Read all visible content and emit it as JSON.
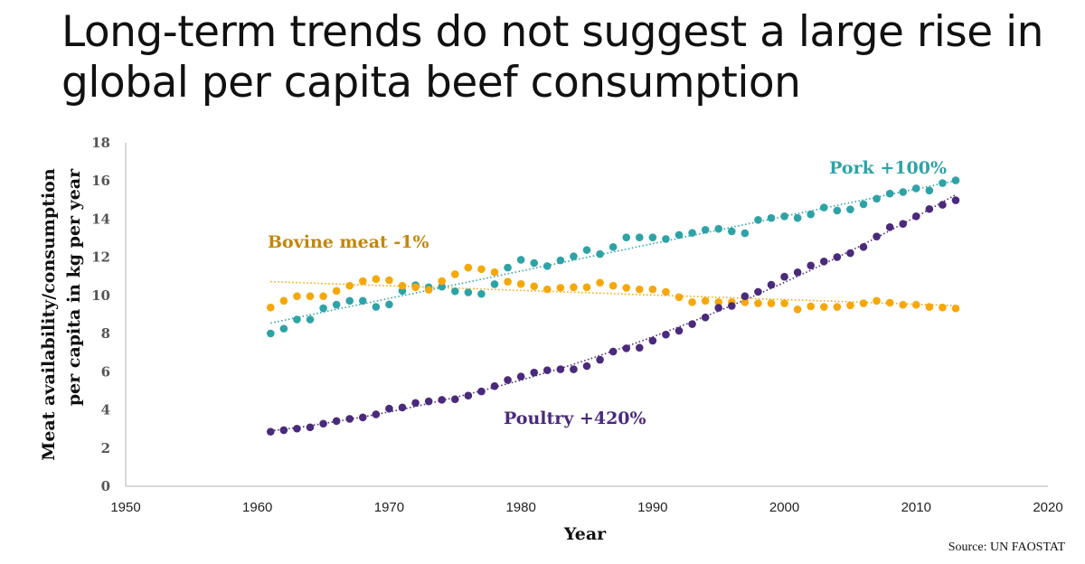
{
  "title": "Long-term trends do not suggest a large rise in global per capita beef consumption",
  "source": "Source: UN FAOSTAT",
  "chart_data": {
    "type": "scatter",
    "title": "Long-term trends do not suggest a large rise in global per capita beef consumption",
    "xlabel": "Year",
    "ylabel_line1": "Meat availability/consumption",
    "ylabel_line2": "per capita in kg per year",
    "xlim": [
      1950,
      2020
    ],
    "ylim": [
      0,
      18
    ],
    "xticks": [
      1950,
      1960,
      1970,
      1980,
      1990,
      2000,
      2010,
      2020
    ],
    "yticks": [
      0,
      2,
      4,
      6,
      8,
      10,
      12,
      14,
      16,
      18
    ],
    "grid": false,
    "x_start": 1961,
    "series": [
      {
        "name": "Pork",
        "label": "Pork +100%",
        "color": "#2ea3a7",
        "label_color": "#2ea3a7",
        "trend": "linear",
        "values": [
          8.01,
          8.26,
          8.74,
          8.74,
          9.33,
          9.52,
          9.72,
          9.72,
          9.4,
          9.53,
          10.24,
          10.54,
          10.43,
          10.46,
          10.22,
          10.16,
          10.08,
          10.59,
          11.46,
          11.87,
          11.7,
          11.54,
          11.84,
          12.05,
          12.38,
          12.17,
          12.54,
          13.04,
          13.04,
          13.04,
          12.96,
          13.17,
          13.28,
          13.44,
          13.49,
          13.36,
          13.26,
          13.96,
          14.06,
          14.15,
          14.06,
          14.25,
          14.61,
          14.45,
          14.51,
          14.78,
          15.07,
          15.34,
          15.42,
          15.61,
          15.5,
          15.89,
          16.03
        ]
      },
      {
        "name": "Bovine meat",
        "label": "Bovine meat -1%",
        "color": "#f6a70a",
        "label_color": "#c4860a",
        "trend": "linear",
        "values": [
          9.37,
          9.72,
          9.96,
          9.96,
          9.96,
          10.24,
          10.51,
          10.75,
          10.86,
          10.8,
          10.51,
          10.43,
          10.3,
          10.75,
          11.11,
          11.46,
          11.38,
          11.22,
          10.72,
          10.6,
          10.48,
          10.32,
          10.4,
          10.43,
          10.43,
          10.67,
          10.51,
          10.4,
          10.32,
          10.32,
          10.19,
          9.91,
          9.65,
          9.72,
          9.65,
          9.65,
          9.65,
          9.59,
          9.59,
          9.59,
          9.27,
          9.43,
          9.4,
          9.4,
          9.48,
          9.59,
          9.72,
          9.62,
          9.51,
          9.51,
          9.4,
          9.37,
          9.32
        ]
      },
      {
        "name": "Poultry",
        "label": "Poultry +420%",
        "color": "#4a2a7c",
        "label_color": "#4a2a7c",
        "trend": "polynomial",
        "values": [
          2.86,
          2.94,
          3.02,
          3.09,
          3.28,
          3.42,
          3.53,
          3.61,
          3.77,
          4.07,
          4.13,
          4.37,
          4.45,
          4.53,
          4.56,
          4.75,
          4.97,
          5.25,
          5.57,
          5.75,
          5.96,
          6.08,
          6.13,
          6.13,
          6.3,
          6.63,
          7.06,
          7.23,
          7.26,
          7.63,
          7.95,
          8.15,
          8.5,
          8.85,
          9.35,
          9.45,
          9.96,
          10.19,
          10.56,
          10.98,
          11.21,
          11.57,
          11.78,
          12.01,
          12.22,
          12.54,
          13.09,
          13.58,
          13.75,
          14.15,
          14.53,
          14.75,
          14.99
        ]
      }
    ]
  }
}
